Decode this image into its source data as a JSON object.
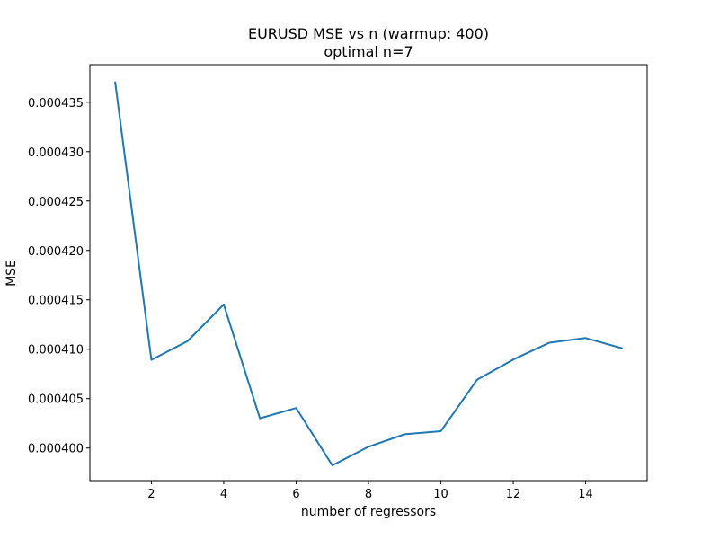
{
  "chart_data": {
    "type": "line",
    "title": "EURUSD MSE vs n (warmup: 400)",
    "subtitle": "optimal n=7",
    "xlabel": "number of regressors",
    "ylabel": "MSE",
    "xlim": [
      0.3,
      15.7
    ],
    "ylim": [
      0.0003967,
      0.0004388
    ],
    "xticks": [
      2,
      4,
      6,
      8,
      10,
      12,
      14
    ],
    "xtick_labels": [
      "2",
      "4",
      "6",
      "8",
      "10",
      "12",
      "14"
    ],
    "yticks": [
      0.0004,
      0.000405,
      0.00041,
      0.000415,
      0.00042,
      0.000425,
      0.00043,
      0.000435
    ],
    "ytick_labels": [
      "0.000400",
      "0.000405",
      "0.000410",
      "0.000415",
      "0.000420",
      "0.000425",
      "0.000430",
      "0.000435"
    ],
    "grid": false,
    "legend": false,
    "series": [
      {
        "color": "#1f77b4",
        "x": [
          1,
          2,
          3,
          4,
          5,
          6,
          7,
          8,
          9,
          10,
          11,
          12,
          13,
          14,
          15
        ],
        "y": [
          0.000437,
          0.000408917,
          0.000410817,
          0.000414533,
          0.000403007,
          0.000404052,
          0.000398245,
          0.000400129,
          0.000401394,
          0.000401703,
          0.000406907,
          0.000408956,
          0.000410662,
          0.00041113,
          0.000410102
        ]
      }
    ]
  }
}
